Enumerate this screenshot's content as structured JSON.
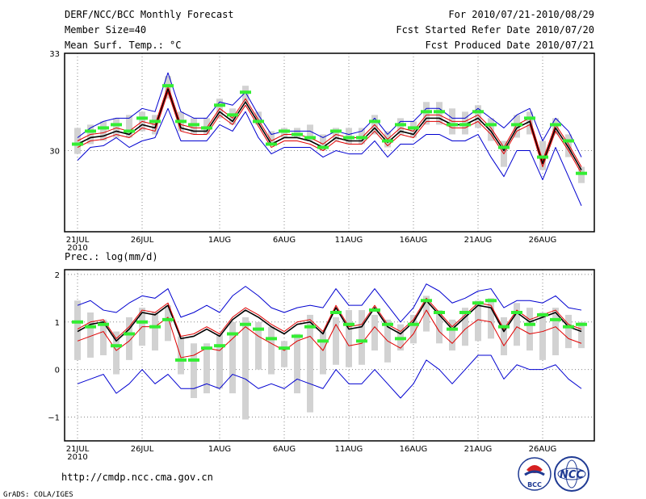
{
  "header": {
    "title": "DERF/NCC/BCC Monthly Forecast",
    "member_size": "Member Size=40",
    "variable": "Mean Surf. Temp.: °C",
    "period": "For 2010/07/21-2010/08/29",
    "refer_date": "Fcst Started Refer Date 2010/07/20",
    "produced_date": "Fcst Produced Date 2010/07/21"
  },
  "footer": {
    "url": "http://cmdp.ncc.cma.gov.cn",
    "grads": "GrADS: COLA/IGES",
    "logo_bcc": "BCC",
    "logo_ncc": "NCC"
  },
  "colors": {
    "ens_mean": "#000000",
    "spread": "#e00000",
    "envelope": "#0000d0",
    "member_box": "#d2d2d2",
    "median": "#33ee33"
  },
  "chart_data": [
    {
      "type": "line",
      "title": "Mean Surf. Temp.: °C",
      "xlabel": "",
      "ylabel": "",
      "x_start": "2010-07-21",
      "n_days": 40,
      "x_ticks": [
        "21JUL",
        "26JUL",
        "1AUG",
        "6AUG",
        "11AUG",
        "16AUG",
        "21AUG",
        "26AUG"
      ],
      "x_tick_days": [
        0,
        5,
        11,
        16,
        21,
        26,
        31,
        36
      ],
      "x_year_label": "2010",
      "y_ticks": [
        "30",
        "33"
      ],
      "y_tick_values": [
        30,
        33
      ],
      "ylim": [
        27.5,
        33
      ],
      "grid": true,
      "series": [
        {
          "name": "ensemble mean",
          "values": [
            30.2,
            30.4,
            30.45,
            30.6,
            30.5,
            30.8,
            30.7,
            31.9,
            30.7,
            30.6,
            30.6,
            31.2,
            30.9,
            31.5,
            30.85,
            30.2,
            30.4,
            30.4,
            30.3,
            30.1,
            30.4,
            30.3,
            30.3,
            30.7,
            30.25,
            30.6,
            30.5,
            31.0,
            31.0,
            30.8,
            30.8,
            31.0,
            30.6,
            30.0,
            30.7,
            30.9,
            29.6,
            30.7,
            30.1,
            29.4
          ]
        },
        {
          "name": "upper spread",
          "values": [
            30.3,
            30.5,
            30.55,
            30.7,
            30.6,
            30.9,
            30.8,
            32.0,
            30.8,
            30.7,
            30.7,
            31.3,
            31.0,
            31.6,
            30.95,
            30.3,
            30.5,
            30.5,
            30.4,
            30.2,
            30.5,
            30.4,
            30.4,
            30.8,
            30.35,
            30.7,
            30.6,
            31.1,
            31.1,
            30.9,
            30.9,
            31.1,
            30.7,
            30.1,
            30.8,
            31.0,
            29.7,
            30.8,
            30.2,
            29.5
          ]
        },
        {
          "name": "lower spread",
          "values": [
            30.1,
            30.3,
            30.35,
            30.5,
            30.4,
            30.7,
            30.6,
            31.8,
            30.6,
            30.5,
            30.5,
            31.1,
            30.8,
            31.4,
            30.75,
            30.1,
            30.3,
            30.3,
            30.2,
            30.0,
            30.3,
            30.2,
            30.2,
            30.6,
            30.15,
            30.5,
            30.4,
            30.9,
            30.9,
            30.7,
            30.7,
            30.9,
            30.5,
            29.9,
            30.6,
            30.8,
            29.5,
            30.6,
            30.0,
            29.3
          ]
        },
        {
          "name": "maximum",
          "values": [
            30.4,
            30.7,
            30.9,
            31.0,
            31.0,
            31.3,
            31.2,
            32.4,
            31.2,
            31.0,
            31.0,
            31.5,
            31.4,
            31.8,
            31.1,
            30.5,
            30.6,
            30.6,
            30.6,
            30.4,
            30.6,
            30.5,
            30.6,
            31.0,
            30.5,
            30.9,
            30.9,
            31.3,
            31.3,
            31.0,
            31.0,
            31.3,
            31.0,
            30.7,
            31.1,
            31.3,
            30.3,
            31.0,
            30.6,
            29.8
          ]
        },
        {
          "name": "minimum",
          "values": [
            29.7,
            30.1,
            30.15,
            30.4,
            30.1,
            30.3,
            30.4,
            31.3,
            30.3,
            30.3,
            30.3,
            30.8,
            30.6,
            31.2,
            30.4,
            29.9,
            30.1,
            30.1,
            30.1,
            29.8,
            30.0,
            29.9,
            29.9,
            30.3,
            29.8,
            30.2,
            30.2,
            30.5,
            30.5,
            30.3,
            30.3,
            30.5,
            29.8,
            29.2,
            30.0,
            30.0,
            29.1,
            30.1,
            29.2,
            28.3
          ]
        }
      ],
      "boxes": {
        "low": [
          29.9,
          30.2,
          30.3,
          30.4,
          30.4,
          30.6,
          30.5,
          31.6,
          30.6,
          30.5,
          30.5,
          31.0,
          30.8,
          31.5,
          30.8,
          30.2,
          30.4,
          30.4,
          30.3,
          30.0,
          30.3,
          30.2,
          30.2,
          30.5,
          30.1,
          30.5,
          30.4,
          30.8,
          30.8,
          30.5,
          30.5,
          30.7,
          30.3,
          29.5,
          30.4,
          30.5,
          29.4,
          30.5,
          29.8,
          29.0
        ],
        "high": [
          30.7,
          30.8,
          30.9,
          31.0,
          31.1,
          31.2,
          31.1,
          32.3,
          31.2,
          31.0,
          31.0,
          31.6,
          31.3,
          32.0,
          31.2,
          30.6,
          30.7,
          30.7,
          30.8,
          30.5,
          30.7,
          30.7,
          30.7,
          31.1,
          30.6,
          31.0,
          30.9,
          31.5,
          31.5,
          31.3,
          31.2,
          31.4,
          31.0,
          30.3,
          31.1,
          31.2,
          30.3,
          31.0,
          30.5,
          29.5
        ],
        "median": [
          30.2,
          30.6,
          30.7,
          30.8,
          30.6,
          31.0,
          30.9,
          32.0,
          30.9,
          30.8,
          30.7,
          31.4,
          31.1,
          31.8,
          30.9,
          30.2,
          30.6,
          30.5,
          30.4,
          30.1,
          30.6,
          30.4,
          30.4,
          30.9,
          30.3,
          30.8,
          30.7,
          31.2,
          31.2,
          30.8,
          30.8,
          31.2,
          30.8,
          30.1,
          30.8,
          31.0,
          29.8,
          30.8,
          30.3,
          29.3
        ]
      }
    },
    {
      "type": "line",
      "title": "Prec.: log(mm/d)",
      "xlabel": "",
      "ylabel": "",
      "x_start": "2010-07-21",
      "n_days": 40,
      "x_ticks": [
        "21JUL",
        "26JUL",
        "1AUG",
        "6AUG",
        "11AUG",
        "16AUG",
        "21AUG",
        "26AUG"
      ],
      "x_tick_days": [
        0,
        5,
        11,
        16,
        21,
        26,
        31,
        36
      ],
      "x_year_label": "2010",
      "y_ticks": [
        "2",
        "1",
        "0",
        "−1"
      ],
      "y_tick_values": [
        2,
        1,
        0,
        -1
      ],
      "ylim": [
        -1.5,
        2.1
      ],
      "grid": true,
      "series": [
        {
          "name": "ensemble mean",
          "values": [
            0.8,
            0.95,
            1.0,
            0.6,
            0.85,
            1.2,
            1.15,
            1.35,
            0.65,
            0.7,
            0.85,
            0.7,
            1.05,
            1.25,
            1.1,
            0.9,
            0.75,
            0.95,
            1.0,
            0.75,
            1.3,
            0.85,
            0.9,
            1.3,
            0.9,
            0.75,
            1.0,
            1.45,
            1.15,
            0.85,
            1.1,
            1.35,
            1.3,
            0.8,
            1.2,
            1.0,
            1.1,
            1.2,
            0.9,
            0.8
          ]
        },
        {
          "name": "upper spread",
          "values": [
            0.85,
            1.0,
            1.05,
            0.65,
            0.9,
            1.25,
            1.2,
            1.4,
            0.7,
            0.75,
            0.9,
            0.75,
            1.1,
            1.3,
            1.15,
            0.95,
            0.8,
            1.0,
            1.05,
            0.8,
            1.35,
            0.9,
            0.95,
            1.35,
            0.95,
            0.8,
            1.05,
            1.5,
            1.2,
            0.9,
            1.15,
            1.4,
            1.35,
            0.85,
            1.25,
            1.05,
            1.15,
            1.25,
            0.95,
            0.85
          ]
        },
        {
          "name": "lower spread",
          "values": [
            0.6,
            0.7,
            0.8,
            0.4,
            0.6,
            0.9,
            0.9,
            1.1,
            0.25,
            0.3,
            0.45,
            0.4,
            0.65,
            0.9,
            0.7,
            0.55,
            0.4,
            0.6,
            0.7,
            0.4,
            0.95,
            0.5,
            0.55,
            0.9,
            0.6,
            0.45,
            0.75,
            1.25,
            0.8,
            0.55,
            0.85,
            1.05,
            1.0,
            0.5,
            0.9,
            0.75,
            0.8,
            0.9,
            0.65,
            0.55
          ]
        },
        {
          "name": "maximum",
          "values": [
            1.35,
            1.45,
            1.25,
            1.2,
            1.4,
            1.55,
            1.5,
            1.7,
            1.1,
            1.2,
            1.35,
            1.2,
            1.55,
            1.75,
            1.55,
            1.3,
            1.2,
            1.3,
            1.35,
            1.3,
            1.7,
            1.35,
            1.35,
            1.7,
            1.35,
            1.0,
            1.3,
            1.8,
            1.65,
            1.4,
            1.5,
            1.65,
            1.7,
            1.3,
            1.45,
            1.45,
            1.4,
            1.55,
            1.3,
            1.25
          ]
        },
        {
          "name": "minimum",
          "values": [
            -0.3,
            -0.2,
            -0.1,
            -0.5,
            -0.3,
            0.0,
            -0.3,
            -0.1,
            -0.4,
            -0.4,
            -0.3,
            -0.4,
            -0.1,
            -0.2,
            -0.4,
            -0.3,
            -0.4,
            -0.2,
            -0.3,
            -0.4,
            0.0,
            -0.3,
            -0.3,
            0.0,
            -0.3,
            -0.6,
            -0.3,
            0.2,
            0.0,
            -0.3,
            0.0,
            0.3,
            0.3,
            -0.2,
            0.1,
            0.0,
            0.0,
            0.1,
            -0.2,
            -0.4
          ]
        }
      ],
      "boxes": {
        "low": [
          0.2,
          0.25,
          0.3,
          -0.1,
          0.2,
          0.5,
          0.4,
          0.6,
          -0.1,
          -0.6,
          -0.5,
          -0.4,
          -0.5,
          -1.05,
          0.0,
          -0.1,
          0.05,
          -0.5,
          -0.9,
          -0.1,
          0.1,
          0.05,
          0.1,
          0.4,
          0.15,
          0.4,
          0.55,
          0.8,
          0.55,
          0.4,
          0.5,
          0.6,
          0.65,
          0.3,
          0.5,
          0.4,
          0.2,
          0.3,
          0.45,
          0.45
        ],
        "high": [
          1.45,
          1.2,
          1.05,
          0.8,
          1.1,
          1.3,
          1.2,
          1.35,
          0.7,
          0.55,
          0.55,
          0.75,
          1.0,
          1.1,
          1.0,
          0.9,
          0.6,
          0.75,
          1.15,
          0.8,
          1.1,
          1.25,
          1.25,
          1.15,
          1.05,
          0.95,
          1.15,
          1.55,
          1.25,
          1.05,
          1.3,
          1.45,
          1.5,
          1.1,
          1.4,
          1.3,
          1.2,
          1.3,
          1.15,
          1.0
        ],
        "median": [
          1.0,
          0.9,
          0.95,
          0.5,
          0.75,
          1.0,
          0.9,
          1.05,
          0.2,
          0.2,
          0.45,
          0.5,
          0.75,
          0.95,
          0.85,
          0.65,
          0.45,
          0.7,
          0.9,
          0.6,
          1.2,
          0.95,
          0.6,
          1.25,
          0.95,
          0.65,
          0.95,
          1.45,
          1.2,
          0.85,
          1.2,
          1.4,
          1.45,
          0.9,
          1.2,
          0.95,
          1.15,
          1.05,
          0.9,
          0.95
        ]
      }
    }
  ]
}
